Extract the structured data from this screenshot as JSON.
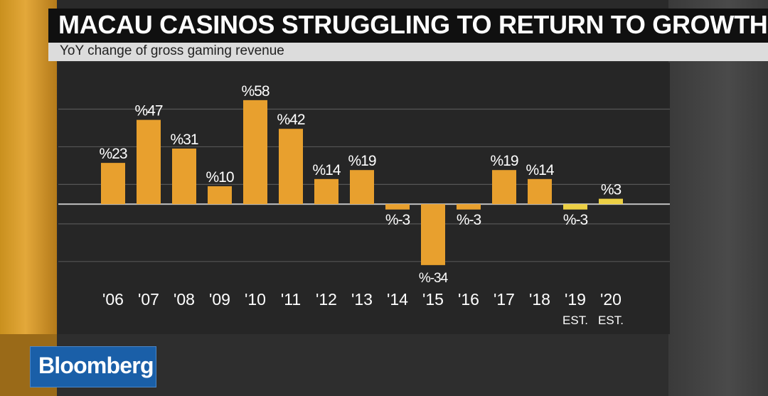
{
  "header": {
    "title": "MACAU CASINOS STRUGGLING TO RETURN TO GROWTH",
    "subtitle": "YoY change of gross gaming revenue"
  },
  "brand": {
    "logo_text": "Bloomberg"
  },
  "colors": {
    "bar": "#e8a02e",
    "bar_estimate": "#ecd044",
    "grid": "#555555",
    "zero_line": "#bfbfbf",
    "label": "#ffffff"
  },
  "chart_data": {
    "type": "bar",
    "title": "MACAU CASINOS STRUGGLING TO RETURN TO GROWTH",
    "subtitle": "YoY change of gross gaming revenue",
    "categories": [
      "'06",
      "'07",
      "'08",
      "'09",
      "'10",
      "'11",
      "'12",
      "'13",
      "'14",
      "'15",
      "'16",
      "'17",
      "'18",
      "'19",
      "'20"
    ],
    "category_notes": [
      "",
      "",
      "",
      "",
      "",
      "",
      "",
      "",
      "",
      "",
      "",
      "",
      "",
      "EST.",
      "EST."
    ],
    "values": [
      23,
      47,
      31,
      10,
      58,
      42,
      14,
      19,
      -3,
      -34,
      -3,
      19,
      14,
      -3,
      3
    ],
    "data_labels": [
      "%23",
      "%47",
      "%31",
      "%10",
      "%58",
      "%42",
      "%14",
      "%19",
      "%-3",
      "%-34",
      "%-3",
      "%19",
      "%14",
      "%-3",
      "%3"
    ],
    "estimate_indices": [
      13,
      14
    ],
    "ylim": [
      -40,
      75
    ],
    "gridlines": [
      -32,
      -11,
      11,
      32,
      53
    ],
    "grid": true,
    "legend": "none"
  }
}
